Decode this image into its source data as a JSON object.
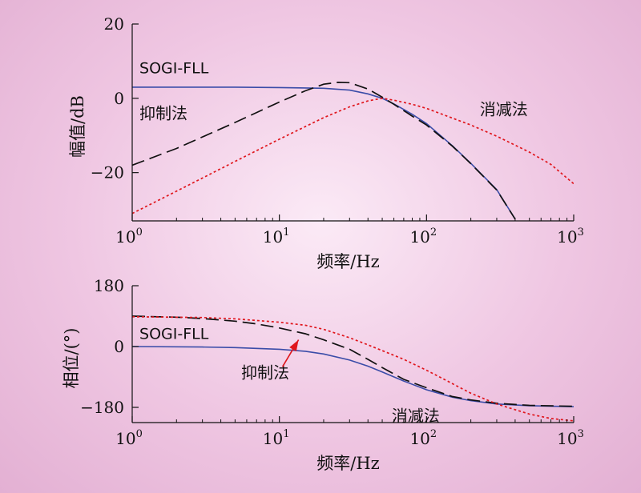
{
  "colors": {
    "sogi": "#3a4ca8",
    "suppress": "#111111",
    "cancel": "#e0161c",
    "arrow": "#e0161c"
  },
  "chart_data": [
    {
      "type": "line",
      "xscale": "log",
      "xlim": [
        1,
        1000
      ],
      "ylim": [
        -33,
        20
      ],
      "xticks": [
        {
          "value": 1,
          "base": "10",
          "exp": "0"
        },
        {
          "value": 10,
          "base": "10",
          "exp": "1"
        },
        {
          "value": 100,
          "base": "10",
          "exp": "2"
        },
        {
          "value": 1000,
          "base": "10",
          "exp": "3"
        }
      ],
      "yticks": [
        {
          "value": 20,
          "label": "20"
        },
        {
          "value": 0,
          "label": "0"
        },
        {
          "value": -20,
          "label": "−20"
        }
      ],
      "xlabel": "频率/Hz",
      "ylabel": "幅值/dB",
      "series": [
        {
          "name": "SOGI-FLL",
          "style": "solid",
          "color": "#3a4ca8",
          "x": [
            1,
            5,
            10,
            20,
            30,
            40,
            50,
            60,
            80,
            100,
            150,
            200,
            300,
            400
          ],
          "y": [
            3.0,
            3.0,
            2.9,
            2.7,
            2.2,
            1.2,
            0,
            -1.5,
            -4.3,
            -6.8,
            -12.8,
            -17.5,
            -24.6,
            -32.5
          ]
        },
        {
          "name": "抑制法",
          "style": "dashed",
          "color": "#111111",
          "x": [
            1,
            2,
            5,
            10,
            15,
            20,
            25,
            30,
            40,
            50,
            60,
            80,
            100,
            150,
            200,
            300,
            400
          ],
          "y": [
            -18,
            -13.5,
            -6.5,
            -1.0,
            2.0,
            3.8,
            4.3,
            4.2,
            2.5,
            0.3,
            -1.6,
            -4.8,
            -7.2,
            -12.9,
            -17.6,
            -24.7,
            -32.5
          ]
        },
        {
          "name": "消减法",
          "style": "dotted",
          "color": "#e0161c",
          "x": [
            1,
            2,
            5,
            10,
            20,
            30,
            40,
            50,
            60,
            80,
            100,
            200,
            300,
            500,
            700,
            1000
          ],
          "y": [
            -31,
            -25,
            -17,
            -11,
            -5.2,
            -2.3,
            -0.7,
            0,
            -0.5,
            -1.6,
            -2.7,
            -7.2,
            -10.2,
            -14.5,
            -17.8,
            -23
          ]
        }
      ],
      "annotations": [
        {
          "text": "SOGI-FLL",
          "x": 1.12,
          "y": 6.8
        },
        {
          "text": "抑制法",
          "x": 1.12,
          "y": -5.5
        },
        {
          "text": "消减法",
          "x": 230,
          "y": -4.5
        }
      ]
    },
    {
      "type": "line",
      "xscale": "log",
      "xlim": [
        1,
        1000
      ],
      "ylim": [
        -225,
        180
      ],
      "xticks": [
        {
          "value": 1,
          "base": "10",
          "exp": "0"
        },
        {
          "value": 10,
          "base": "10",
          "exp": "1"
        },
        {
          "value": 100,
          "base": "10",
          "exp": "2"
        },
        {
          "value": 1000,
          "base": "10",
          "exp": "3"
        }
      ],
      "yticks": [
        {
          "value": 180,
          "label": "180"
        },
        {
          "value": 0,
          "label": "0"
        },
        {
          "value": -180,
          "label": "−180"
        }
      ],
      "xlabel": "频率/Hz",
      "ylabel": "相位/(°)",
      "series": [
        {
          "name": "SOGI-FLL",
          "style": "solid",
          "color": "#3a4ca8",
          "x": [
            1,
            3,
            5,
            10,
            15,
            20,
            30,
            40,
            50,
            70,
            100,
            150,
            200,
            300,
            500,
            1000
          ],
          "y": [
            0,
            -1.5,
            -3,
            -8,
            -14,
            -22,
            -40,
            -58,
            -75,
            -102,
            -128,
            -150,
            -160,
            -170,
            -175,
            -178
          ]
        },
        {
          "name": "抑制法",
          "style": "dashed",
          "color": "#111111",
          "x": [
            1,
            2,
            3,
            5,
            7,
            10,
            15,
            20,
            30,
            40,
            50,
            70,
            100,
            150,
            200,
            300,
            500,
            1000
          ],
          "y": [
            90,
            87,
            83,
            75,
            67,
            55,
            38,
            20,
            -8,
            -38,
            -62,
            -97,
            -122,
            -148,
            -158,
            -168,
            -174,
            -177
          ]
        },
        {
          "name": "消减法",
          "style": "dotted",
          "color": "#e0161c",
          "x": [
            1,
            3,
            5,
            10,
            15,
            20,
            30,
            40,
            50,
            70,
            100,
            150,
            200,
            300,
            500,
            700,
            1000
          ],
          "y": [
            88,
            86,
            82,
            72,
            63,
            51,
            26,
            5,
            -12,
            -38,
            -70,
            -110,
            -138,
            -170,
            -200,
            -213,
            -220
          ]
        }
      ],
      "annotations": [
        {
          "text": "SOGI-FLL",
          "x": 1.12,
          "y": 22
        },
        {
          "text": "抑制法",
          "x": 5.5,
          "y": -93
        },
        {
          "text": "消减法",
          "x": 58,
          "y": -221
        }
      ],
      "arrow": {
        "from_x": 10.5,
        "from_y": -60,
        "to_x": 13.5,
        "to_y": 20
      }
    }
  ]
}
